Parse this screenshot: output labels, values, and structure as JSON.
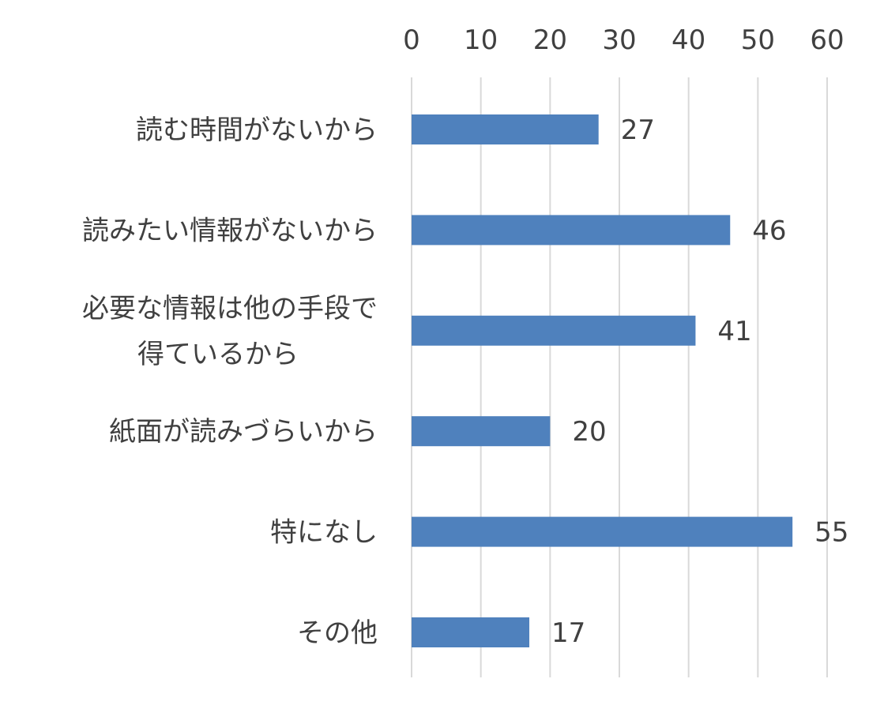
{
  "chart_data": {
    "type": "bar",
    "orientation": "horizontal",
    "categories": [
      [
        "読む時間がないから"
      ],
      [
        "読みたい情報がないから"
      ],
      [
        "必要な情報は他の手段で",
        "得ているから"
      ],
      [
        "紙面が読みづらいから"
      ],
      [
        "特になし"
      ],
      [
        "その他"
      ]
    ],
    "values": [
      27,
      46,
      41,
      20,
      55,
      17
    ],
    "xlim": [
      0,
      60
    ],
    "x_ticks": [
      "0",
      "10",
      "20",
      "30",
      "40",
      "50",
      "60"
    ],
    "x_axis_position": "top",
    "grid": true,
    "bar_color": "#4f81bd",
    "title": "",
    "xlabel": "",
    "ylabel": ""
  }
}
